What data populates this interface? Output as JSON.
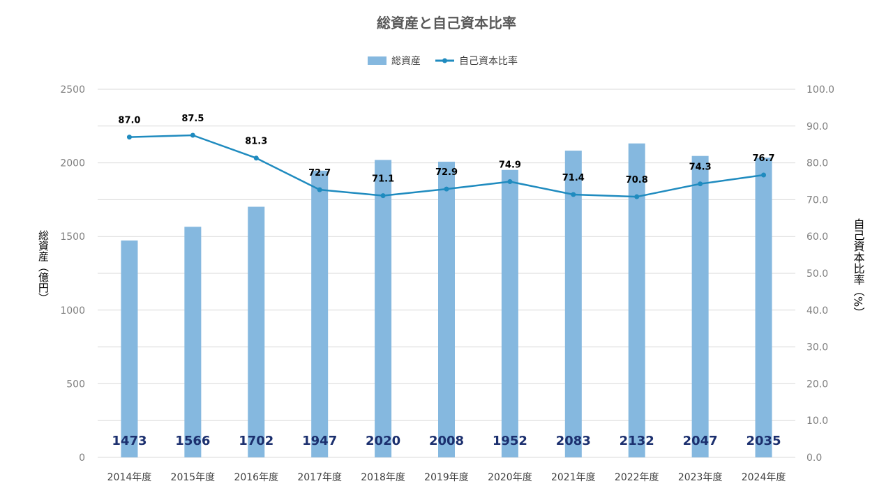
{
  "chart_data": {
    "type": "bar",
    "title": "総資産と自己資本比率",
    "categories": [
      "2014年度",
      "2015年度",
      "2016年度",
      "2017年度",
      "2018年度",
      "2019年度",
      "2020年度",
      "2021年度",
      "2022年度",
      "2023年度",
      "2024年度"
    ],
    "series": [
      {
        "name": "総資産",
        "type": "bar",
        "axis": "left",
        "values": [
          1473,
          1566,
          1702,
          1947,
          2020,
          2008,
          1952,
          2083,
          2132,
          2047,
          2035
        ]
      },
      {
        "name": "自己資本比率",
        "type": "line",
        "axis": "right",
        "values": [
          87.0,
          87.5,
          81.3,
          72.7,
          71.1,
          72.9,
          74.9,
          71.4,
          70.8,
          74.3,
          76.7
        ]
      }
    ],
    "ylabel": "総資産（億円）",
    "y2label": "自己資本比率（%）",
    "ylim": [
      0,
      2500
    ],
    "y2lim": [
      0,
      100
    ],
    "yticks": [
      "0",
      "500",
      "1000",
      "1500",
      "2000",
      "2500"
    ],
    "y2ticks": [
      "0.0",
      "10.0",
      "20.0",
      "30.0",
      "40.0",
      "50.0",
      "60.0",
      "70.0",
      "80.0",
      "90.0",
      "100.0"
    ],
    "grid": true,
    "legend_position": "top-center",
    "colors": {
      "bar": "#85b8df",
      "line": "#1f8bbf",
      "bar_label": "#1b2f6e",
      "line_label": "#000000",
      "axis_text": "#7f7f7f",
      "category_text": "#404040",
      "title_text": "#595959",
      "grid": "#d9d9d9"
    }
  }
}
